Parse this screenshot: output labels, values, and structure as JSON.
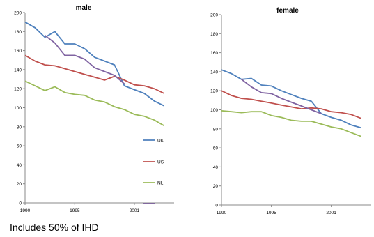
{
  "footnote": "Includes 50% of IHD",
  "chart_data": [
    {
      "type": "line",
      "title": "male",
      "x": [
        1990,
        1991,
        1992,
        1993,
        1994,
        1995,
        1996,
        1997,
        1998,
        1999,
        2000,
        2001,
        2002,
        2003,
        2004,
        2005
      ],
      "xticks": [
        "1990",
        "1995",
        "2001"
      ],
      "xtick_values": [
        1990,
        1995,
        2001
      ],
      "xlim": [
        1990,
        2005
      ],
      "ylim": [
        0,
        200
      ],
      "yticks": [
        0,
        20,
        40,
        60,
        80,
        100,
        120,
        140,
        160,
        180,
        200
      ],
      "legend": "right-inside",
      "grid": false,
      "series": [
        {
          "name": "UK",
          "color": "#4f81bd",
          "values": [
            190,
            184,
            174,
            180,
            167,
            167,
            162,
            153,
            149,
            145,
            123,
            119,
            115,
            107,
            102,
            null
          ]
        },
        {
          "name": "US",
          "color": "#c0504d",
          "values": [
            155,
            149,
            145,
            144,
            141,
            138,
            135,
            132,
            129,
            133,
            129,
            124,
            123,
            120,
            115,
            null
          ]
        },
        {
          "name": "NL",
          "color": "#9bbb59",
          "values": [
            128,
            123,
            118,
            122,
            116,
            114,
            113,
            108,
            106,
            101,
            98,
            93,
            91,
            87,
            81,
            null
          ]
        },
        {
          "name": "",
          "color": "#8064a2",
          "values": [
            null,
            null,
            176,
            168,
            155,
            155,
            151,
            142,
            138,
            134,
            125,
            null,
            null,
            null,
            null,
            null
          ]
        }
      ]
    },
    {
      "type": "line",
      "title": "female",
      "x": [
        1990,
        1991,
        1992,
        1993,
        1994,
        1995,
        1996,
        1997,
        1998,
        1999,
        2000,
        2001,
        2002,
        2003,
        2004,
        2005
      ],
      "xticks": [
        "1990",
        "1995",
        "2001"
      ],
      "xtick_values": [
        1990,
        1995,
        2001
      ],
      "xlim": [
        1990,
        2005
      ],
      "ylim": [
        0,
        200
      ],
      "yticks": [
        0,
        20,
        40,
        60,
        80,
        100,
        120,
        140,
        160,
        180,
        200
      ],
      "legend": "none",
      "grid": false,
      "series": [
        {
          "name": "UK",
          "color": "#4f81bd",
          "values": [
            142,
            138,
            132,
            133,
            126,
            125,
            120,
            116,
            112,
            109,
            96,
            92,
            89,
            84,
            81,
            null
          ]
        },
        {
          "name": "US",
          "color": "#c0504d",
          "values": [
            120,
            115,
            112,
            111,
            109,
            107,
            105,
            103,
            101,
            102,
            101,
            98,
            97,
            95,
            91,
            null
          ]
        },
        {
          "name": "NL",
          "color": "#9bbb59",
          "values": [
            99,
            98,
            97,
            98,
            98,
            94,
            92,
            89,
            88,
            88,
            85,
            82,
            80,
            76,
            72,
            null
          ]
        },
        {
          "name": "",
          "color": "#8064a2",
          "values": [
            null,
            null,
            132,
            124,
            118,
            117,
            112,
            108,
            104,
            100,
            96,
            null,
            null,
            null,
            null,
            null
          ]
        }
      ]
    }
  ]
}
